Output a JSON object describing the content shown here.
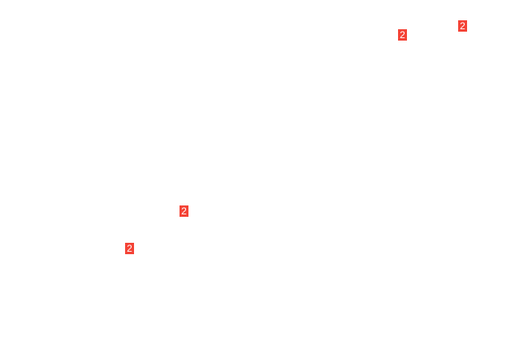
{
  "badge_color": "#f44336",
  "badges": [
    {
      "label": "2"
    },
    {
      "label": "2"
    },
    {
      "label": "2"
    },
    {
      "label": "2"
    }
  ]
}
